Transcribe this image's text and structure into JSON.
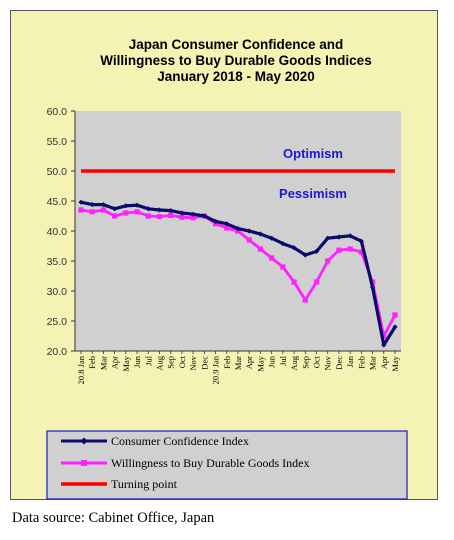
{
  "source_note": "Data source: Cabinet Office, Japan",
  "chart_data": {
    "type": "line",
    "title_lines": [
      "Japan Consumer Confidence and",
      "Willingness to Buy Durable Goods Indices",
      "January 2018 - May 2020"
    ],
    "ylim": [
      20,
      60
    ],
    "y_ticks": [
      "20.0",
      "25.0",
      "30.0",
      "35.0",
      "40.0",
      "45.0",
      "50.0",
      "55.0",
      "60.0"
    ],
    "y_tick_values": [
      20,
      25,
      30,
      35,
      40,
      45,
      50,
      55,
      60
    ],
    "x_tick_labels": [
      "20.8 Jan",
      "Feb",
      "Mar",
      "Apr",
      "May",
      "Jun",
      "Jul",
      "Aug",
      "Sep",
      "Oct",
      "Nov",
      "Dec",
      "20.9 Jan",
      "Feb",
      "Mar",
      "Apr",
      "May",
      "Jun",
      "Jul",
      "Aug",
      "Sep",
      "Oct",
      "Nov",
      "Dec",
      "Jan",
      "Feb",
      "Mar",
      "Apr",
      "May"
    ],
    "plot_area_color": "#d0d0d0",
    "frame_color": "#f4f3b4",
    "annotations": {
      "above": "Optimism",
      "below": "Pessimism"
    },
    "series": [
      {
        "name": "Consumer Confidence Index",
        "color": "#0b0b6b",
        "marker": "diamond",
        "values": [
          44.8,
          44.4,
          44.4,
          43.7,
          44.2,
          44.3,
          43.7,
          43.5,
          43.4,
          43.0,
          42.8,
          42.5,
          41.6,
          41.2,
          40.4,
          40.0,
          39.5,
          38.8,
          37.9,
          37.2,
          36.0,
          36.6,
          38.8,
          39.0,
          39.2,
          38.3,
          30.6,
          21.0,
          24.0
        ]
      },
      {
        "name": "Willingness to Buy Durable Goods Index",
        "color": "#ff22ff",
        "marker": "square",
        "values": [
          43.5,
          43.2,
          43.5,
          42.5,
          43.0,
          43.2,
          42.5,
          42.4,
          42.6,
          42.3,
          42.2,
          42.5,
          41.2,
          40.5,
          40.0,
          38.5,
          37.0,
          35.5,
          34.0,
          31.5,
          28.5,
          31.5,
          35.0,
          36.8,
          37.0,
          36.5,
          31.5,
          22.5,
          26.0
        ]
      },
      {
        "name": "Turning point",
        "color": "#ff0000",
        "marker": "none",
        "values": [
          50,
          50,
          50,
          50,
          50,
          50,
          50,
          50,
          50,
          50,
          50,
          50,
          50,
          50,
          50,
          50,
          50,
          50,
          50,
          50,
          50,
          50,
          50,
          50,
          50,
          50,
          50,
          50,
          50
        ]
      }
    ],
    "legend": {
      "placement": "bottom",
      "border_color": "#1a1ad0",
      "background": "#d0d0d0"
    }
  }
}
